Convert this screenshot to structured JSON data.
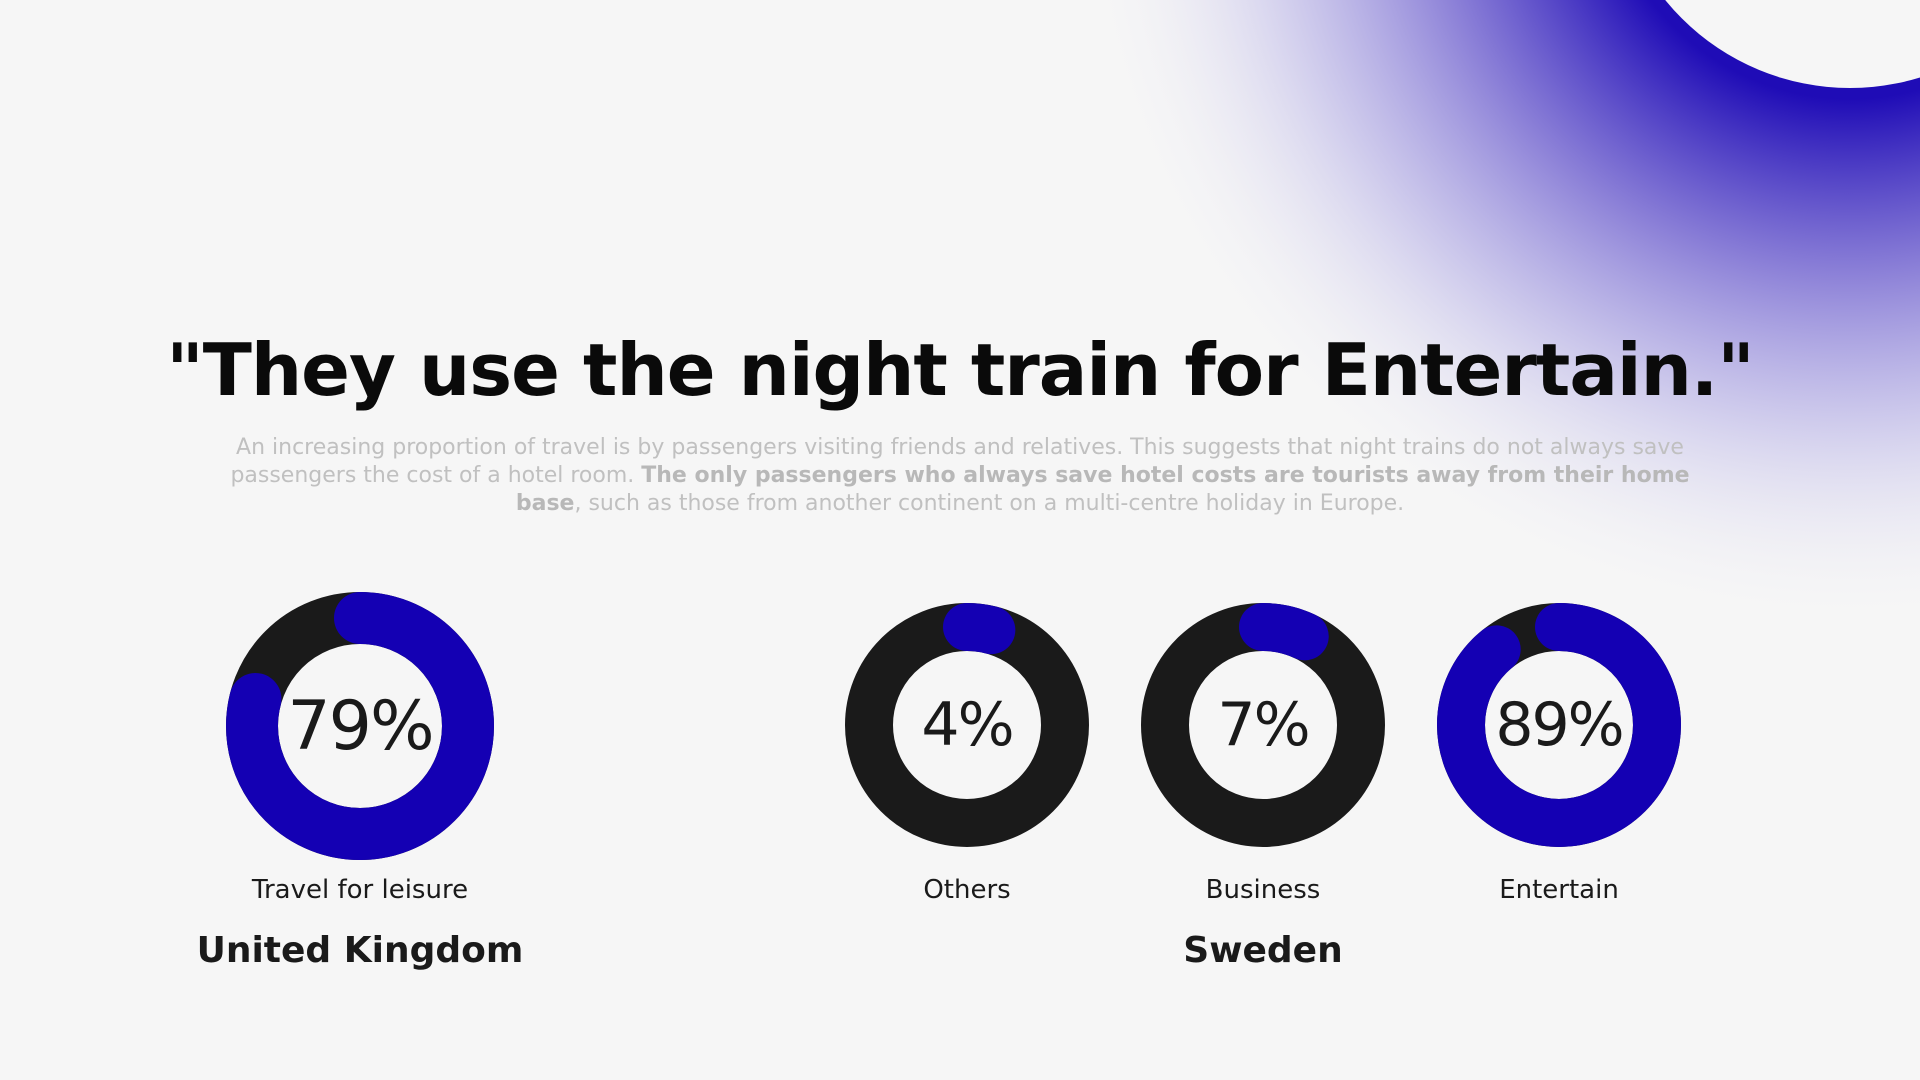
{
  "headline": "\"They use the night train for Entertain.\"",
  "body": {
    "intro": "An increasing proportion of travel is by passengers visiting friends and relatives. This suggests that night trains do not always save passengers the cost of a hotel room. ",
    "emphasis": "The only passengers who always save hotel costs are tourists away from their home base",
    "outro": ", such as those from another continent on a multi-centre holiday in Europe."
  },
  "colors": {
    "accent": "#1400b3",
    "track": "#1a1a1a",
    "background": "#f6f6f6"
  },
  "chart_data": [
    {
      "type": "pie",
      "group": "United Kingdom",
      "categories": [
        "Travel for leisure"
      ],
      "values": [
        79
      ],
      "labels": [
        "79%"
      ]
    },
    {
      "type": "pie",
      "group": "Sweden",
      "categories": [
        "Others",
        "Business",
        "Entertain"
      ],
      "values": [
        4,
        7,
        89
      ],
      "labels": [
        "4%",
        "7%",
        "89%"
      ]
    }
  ]
}
